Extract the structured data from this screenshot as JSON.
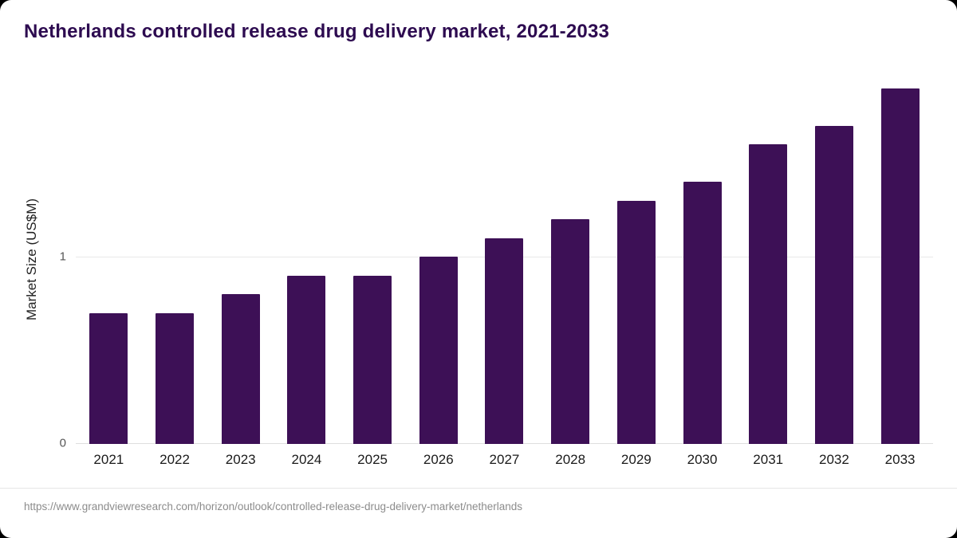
{
  "header": {
    "title": "Netherlands controlled release drug delivery market, 2021-2033"
  },
  "chart_data": {
    "type": "bar",
    "title": "Netherlands controlled release drug delivery market, 2021-2033",
    "categories": [
      "2021",
      "2022",
      "2023",
      "2024",
      "2025",
      "2026",
      "2027",
      "2028",
      "2029",
      "2030",
      "2031",
      "2032",
      "2033"
    ],
    "values": [
      0.7,
      0.7,
      0.8,
      0.9,
      0.9,
      1.0,
      1.1,
      1.2,
      1.3,
      1.4,
      1.6,
      1.7,
      1.9
    ],
    "xlabel": "",
    "ylabel": "Market Size (US$M)",
    "ylim": [
      0,
      2.0
    ],
    "yticks": [
      0,
      1
    ],
    "grid": "horizontal-at-1-only",
    "legend": "none",
    "bar_color": "#3d1056"
  },
  "footer": {
    "source": "https://www.grandviewresearch.com/horizon/outlook/controlled-release-drug-delivery-market/netherlands"
  },
  "colors": {
    "title": "#2d0b50",
    "bar": "#3d1056",
    "gridline": "#e9e9e9",
    "source_text": "#8c8c8c",
    "background": "#ffffff"
  }
}
